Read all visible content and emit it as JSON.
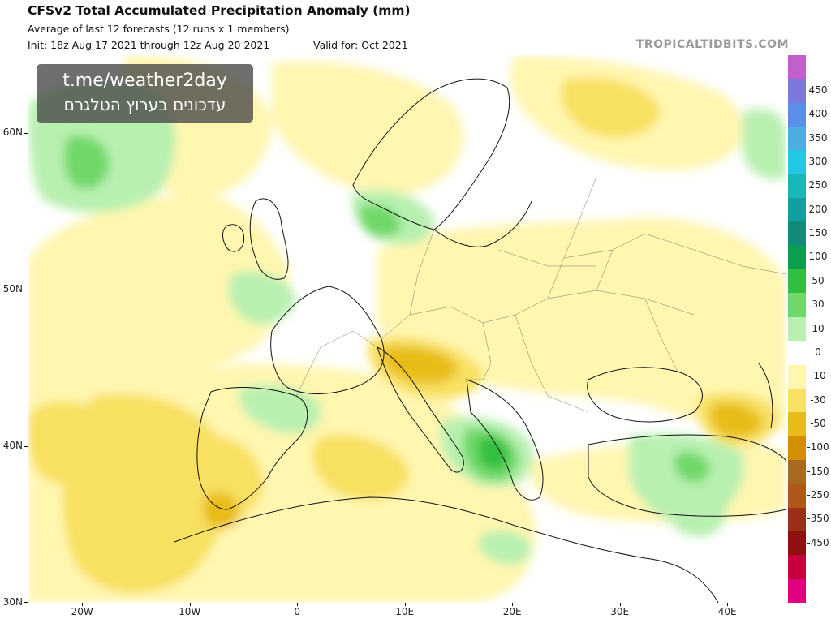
{
  "header": {
    "title": "CFSv2 Total Accumulated Precipitation Anomaly (mm)",
    "subtitle": "Average of last 12 forecasts (12 runs x 1 members)",
    "init": "Init: 18z Aug 17 2021 through 12z Aug 20 2021",
    "valid": "Valid for: Oct 2021",
    "brand": "TROPICALTIDBITS.COM"
  },
  "overlay": {
    "link": "t.me/weather2day",
    "hebrew": "עדכונים בערוץ הטלגרם"
  },
  "map": {
    "lat_labels": [
      "60N",
      "50N",
      "40N",
      "30N"
    ],
    "lon_labels": [
      "20W",
      "10W",
      "0",
      "10E",
      "20E",
      "30E",
      "40E"
    ],
    "extent": {
      "lon_min": -25,
      "lon_max": 45.5,
      "lat_min": 30,
      "lat_max": 65
    }
  },
  "colorbar": {
    "labels": [
      "450",
      "400",
      "350",
      "300",
      "250",
      "200",
      "150",
      "100",
      "50",
      "30",
      "10",
      "0",
      "-10",
      "-30",
      "-50",
      "-100",
      "-150",
      "-250",
      "-350",
      "-450"
    ],
    "colors": [
      "#c060c8",
      "#7a78d8",
      "#5a8ee8",
      "#4aaee0",
      "#20c8e0",
      "#18b8b8",
      "#10a0a0",
      "#108c78",
      "#0aa050",
      "#30c040",
      "#70d868",
      "#b8f0b0",
      "#ffffff",
      "#fff6b0",
      "#f8e060",
      "#e8bc18",
      "#d09000",
      "#a86a20",
      "#b05818",
      "#9a3018",
      "#901010",
      "#c80040",
      "#e00080"
    ]
  }
}
